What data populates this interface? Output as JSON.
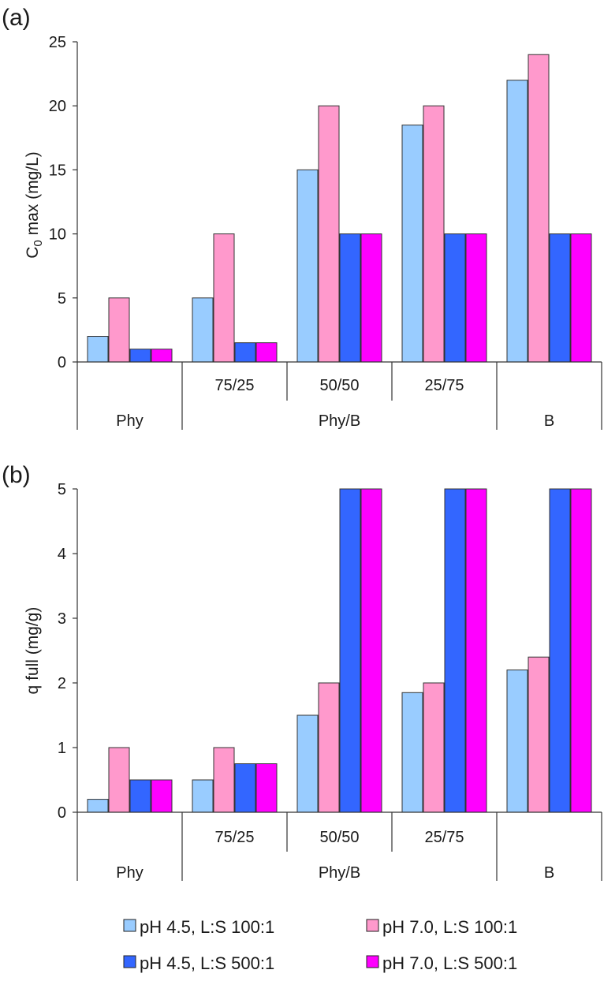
{
  "chart_data": [
    {
      "type": "bar",
      "panel_label": "(a)",
      "ylabel_main": "C",
      "ylabel_sub": "0",
      "ylabel_rest": " max (mg/L)",
      "ylim": [
        0,
        25
      ],
      "yticks": [
        "0",
        "5",
        "10",
        "15",
        "20",
        "25"
      ],
      "categories": [
        "Phy",
        "75/25",
        "50/50",
        "25/75",
        "B"
      ],
      "subgroup_labels": [
        "",
        "75/25",
        "50/50",
        "25/75",
        ""
      ],
      "group_labels": [
        "Phy",
        "Phy/B",
        "B"
      ],
      "series": [
        {
          "name": "pH 4.5, L:S 100:1",
          "values": [
            2,
            5,
            15,
            18.5,
            22
          ]
        },
        {
          "name": "pH 7.0, L:S 100:1",
          "values": [
            5,
            10,
            20,
            20,
            24
          ]
        },
        {
          "name": "pH 4.5, L:S 500:1",
          "values": [
            1,
            1.5,
            10,
            10,
            10
          ]
        },
        {
          "name": "pH 7.0, L:S 500:1",
          "values": [
            1,
            1.5,
            10,
            10,
            10
          ]
        }
      ]
    },
    {
      "type": "bar",
      "panel_label": "(b)",
      "ylabel_main": "q full (mg/g)",
      "ylim": [
        0,
        5
      ],
      "yticks": [
        "0",
        "1",
        "2",
        "3",
        "4",
        "5"
      ],
      "categories": [
        "Phy",
        "75/25",
        "50/50",
        "25/75",
        "B"
      ],
      "subgroup_labels": [
        "",
        "75/25",
        "50/50",
        "25/75",
        ""
      ],
      "group_labels": [
        "Phy",
        "Phy/B",
        "B"
      ],
      "series": [
        {
          "name": "pH 4.5, L:S 100:1",
          "values": [
            0.2,
            0.5,
            1.5,
            1.85,
            2.2
          ]
        },
        {
          "name": "pH 7.0, L:S 100:1",
          "values": [
            1,
            1,
            2,
            2,
            2.4
          ]
        },
        {
          "name": "pH 4.5, L:S 500:1",
          "values": [
            0.5,
            0.75,
            5,
            5,
            5
          ]
        },
        {
          "name": "pH 7.0, L:S 500:1",
          "values": [
            0.5,
            0.75,
            5,
            5,
            5
          ]
        }
      ]
    }
  ],
  "legend": [
    {
      "label": "pH 4.5, L:S 100:1",
      "color": "#99ccff"
    },
    {
      "label": "pH 7.0, L:S 100:1",
      "color": "#ff99cc"
    },
    {
      "label": "pH 4.5, L:S 500:1",
      "color": "#3366ff"
    },
    {
      "label": "pH 7.0, L:S 500:1",
      "color": "#ff00ff"
    }
  ]
}
